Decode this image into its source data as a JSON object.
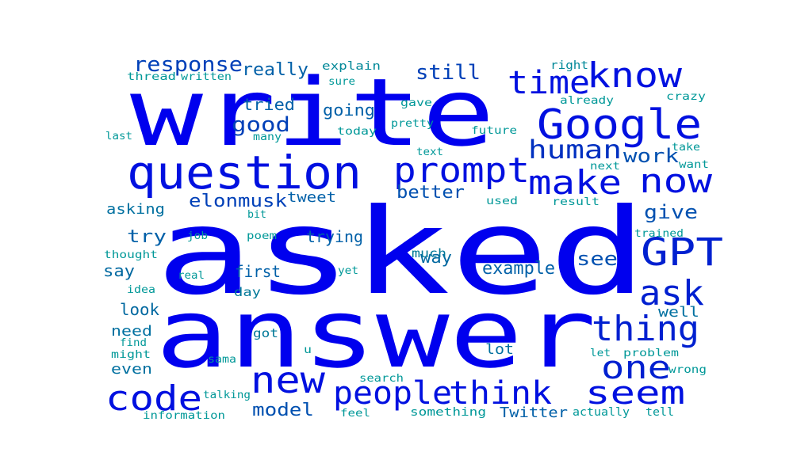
{
  "colors": {
    "background": "#ffffff",
    "palette": [
      "#0000ee",
      "#0010d8",
      "#0030c0",
      "#0050b0",
      "#0068a8",
      "#0080a0",
      "#00909a",
      "#009898"
    ]
  },
  "words": [
    {
      "text": "asked",
      "color": "#0000ee"
    },
    {
      "text": "answer",
      "color": "#0000ee"
    },
    {
      "text": "write",
      "color": "#0000ee"
    },
    {
      "text": "question",
      "color": "#0010e0"
    },
    {
      "text": "Google",
      "color": "#0010e0"
    },
    {
      "text": "prompt",
      "color": "#0010e0"
    },
    {
      "text": "know",
      "color": "#0010e0"
    },
    {
      "text": "time",
      "color": "#0010e0"
    },
    {
      "text": "make",
      "color": "#0010e0"
    },
    {
      "text": "now",
      "color": "#0010e0"
    },
    {
      "text": "GPT",
      "color": "#0020d0"
    },
    {
      "text": "people",
      "color": "#0010e0"
    },
    {
      "text": "think",
      "color": "#0010e0"
    },
    {
      "text": "seem",
      "color": "#0010e0"
    },
    {
      "text": "code",
      "color": "#0010e0"
    },
    {
      "text": "new",
      "color": "#0010e0"
    },
    {
      "text": "thing",
      "color": "#0020d0"
    },
    {
      "text": "ask",
      "color": "#0020d0"
    },
    {
      "text": "one",
      "color": "#0020d0"
    },
    {
      "text": "human",
      "color": "#0030c0"
    },
    {
      "text": "response",
      "color": "#0040b8"
    },
    {
      "text": "still",
      "color": "#0040b8"
    },
    {
      "text": "good",
      "color": "#0040b8"
    },
    {
      "text": "elonmusk",
      "color": "#0040b8"
    },
    {
      "text": "really",
      "color": "#0060a8"
    },
    {
      "text": "work",
      "color": "#0050b0"
    },
    {
      "text": "better",
      "color": "#0050b0"
    },
    {
      "text": "give",
      "color": "#0050b0"
    },
    {
      "text": "see",
      "color": "#0050b0"
    },
    {
      "text": "example",
      "color": "#0060a8"
    },
    {
      "text": "model",
      "color": "#0050b0"
    },
    {
      "text": "Twitter",
      "color": "#0060a8"
    },
    {
      "text": "tried",
      "color": "#0060a8"
    },
    {
      "text": "going",
      "color": "#0060a8"
    },
    {
      "text": "tweet",
      "color": "#0060a8"
    },
    {
      "text": "trying",
      "color": "#0060a8"
    },
    {
      "text": "try",
      "color": "#0060a8"
    },
    {
      "text": "first",
      "color": "#0060a8"
    },
    {
      "text": "way",
      "color": "#0068a0"
    },
    {
      "text": "say",
      "color": "#0068a0"
    },
    {
      "text": "look",
      "color": "#0068a0"
    },
    {
      "text": "asking",
      "color": "#0070a0"
    },
    {
      "text": "need",
      "color": "#0070a0"
    },
    {
      "text": "even",
      "color": "#0070a0"
    },
    {
      "text": "well",
      "color": "#0070a0"
    },
    {
      "text": "lot",
      "color": "#0070a0"
    },
    {
      "text": "much",
      "color": "#007898"
    },
    {
      "text": "day",
      "color": "#007898"
    },
    {
      "text": "got",
      "color": "#007898"
    },
    {
      "text": "explain",
      "color": "#008898"
    },
    {
      "text": "right",
      "color": "#008898"
    },
    {
      "text": "thread",
      "color": "#009898"
    },
    {
      "text": "written",
      "color": "#009898"
    },
    {
      "text": "sure",
      "color": "#009898"
    },
    {
      "text": "already",
      "color": "#009898"
    },
    {
      "text": "gave",
      "color": "#009898"
    },
    {
      "text": "crazy",
      "color": "#009898"
    },
    {
      "text": "pretty",
      "color": "#009898"
    },
    {
      "text": "last",
      "color": "#009898"
    },
    {
      "text": "many",
      "color": "#009898"
    },
    {
      "text": "today",
      "color": "#009898"
    },
    {
      "text": "future",
      "color": "#009898"
    },
    {
      "text": "take",
      "color": "#009898"
    },
    {
      "text": "text",
      "color": "#009898"
    },
    {
      "text": "next",
      "color": "#009898"
    },
    {
      "text": "want",
      "color": "#009898"
    },
    {
      "text": "used",
      "color": "#009898"
    },
    {
      "text": "result",
      "color": "#009898"
    },
    {
      "text": "bit",
      "color": "#009898"
    },
    {
      "text": "job",
      "color": "#009898"
    },
    {
      "text": "poem",
      "color": "#009898"
    },
    {
      "text": "trained",
      "color": "#009898"
    },
    {
      "text": "thought",
      "color": "#009898"
    },
    {
      "text": "idea",
      "color": "#009898"
    },
    {
      "text": "real",
      "color": "#009898"
    },
    {
      "text": "yet",
      "color": "#009898"
    },
    {
      "text": "find",
      "color": "#009898"
    },
    {
      "text": "might",
      "color": "#009898"
    },
    {
      "text": "u",
      "color": "#009898"
    },
    {
      "text": "let",
      "color": "#009898"
    },
    {
      "text": "problem",
      "color": "#009898"
    },
    {
      "text": "sama",
      "color": "#009898"
    },
    {
      "text": "search",
      "color": "#009898"
    },
    {
      "text": "wrong",
      "color": "#009898"
    },
    {
      "text": "talking",
      "color": "#009898"
    },
    {
      "text": "something",
      "color": "#009898"
    },
    {
      "text": "information",
      "color": "#009898"
    },
    {
      "text": "feel",
      "color": "#009898"
    },
    {
      "text": "actually",
      "color": "#009898"
    },
    {
      "text": "tell",
      "color": "#009898"
    }
  ]
}
